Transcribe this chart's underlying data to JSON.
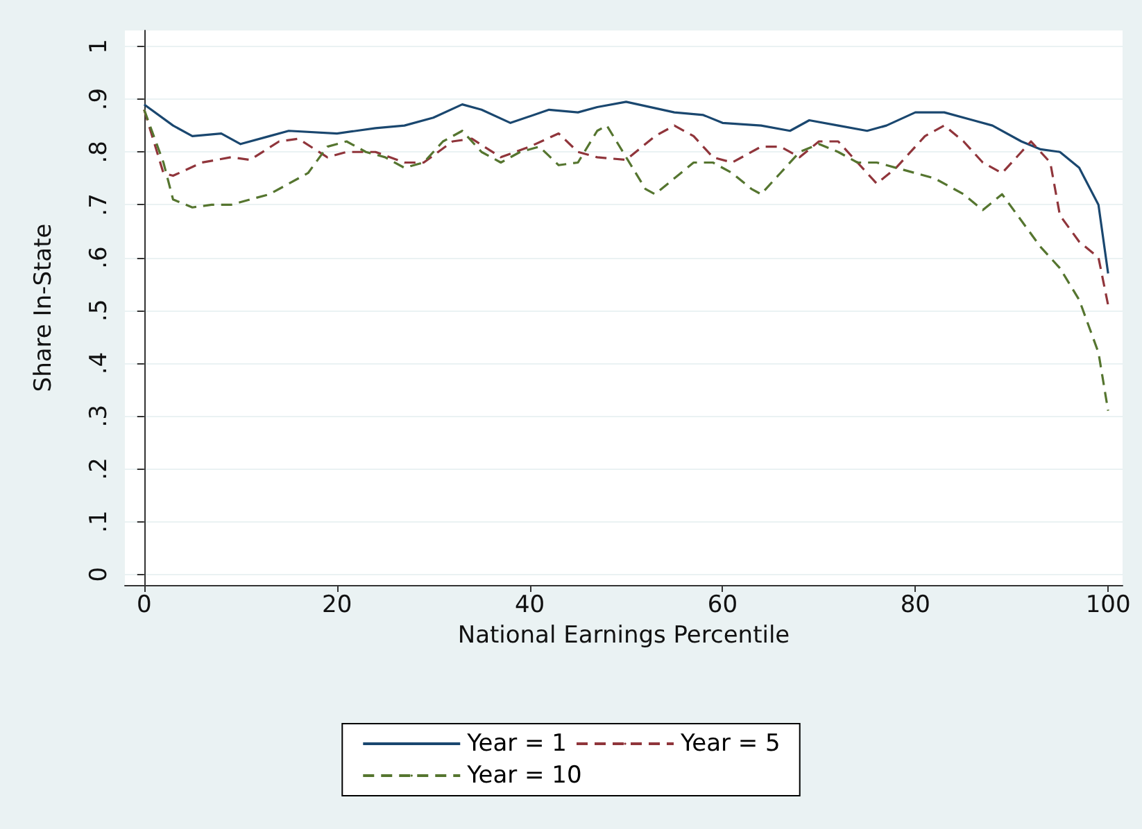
{
  "chart_data": {
    "type": "line",
    "xlabel": "National Earnings Percentile",
    "ylabel": "Share In-State",
    "xlim": [
      -2,
      101.5
    ],
    "xticks": [
      0,
      20,
      40,
      60,
      80,
      100
    ],
    "ylim": [
      -0.02,
      1.03
    ],
    "yticks": [
      {
        "value": 0,
        "label": "0"
      },
      {
        "value": 0.1,
        "label": ".1"
      },
      {
        "value": 0.2,
        "label": ".2"
      },
      {
        "value": 0.3,
        "label": ".3"
      },
      {
        "value": 0.4,
        "label": ".4"
      },
      {
        "value": 0.5,
        "label": ".5"
      },
      {
        "value": 0.6,
        "label": ".6"
      },
      {
        "value": 0.7,
        "label": ".7"
      },
      {
        "value": 0.8,
        "label": ".8"
      },
      {
        "value": 0.9,
        "label": ".9"
      },
      {
        "value": 1,
        "label": "1"
      }
    ],
    "grid": "y",
    "legend": "bottom",
    "marker": "none",
    "series": [
      {
        "name": "Year = 1",
        "color": "#1a476f",
        "line_style": "solid",
        "x": [
          0,
          3,
          5,
          8,
          10,
          13,
          15,
          20,
          24,
          27,
          30,
          33,
          35,
          38,
          42,
          45,
          47,
          50,
          55,
          58,
          60,
          64,
          67,
          69,
          72,
          75,
          77,
          80,
          83,
          86,
          88,
          91,
          93,
          95,
          97,
          99,
          100
        ],
        "values": [
          0.89,
          0.85,
          0.83,
          0.835,
          0.815,
          0.83,
          0.84,
          0.835,
          0.845,
          0.85,
          0.865,
          0.89,
          0.88,
          0.855,
          0.88,
          0.875,
          0.885,
          0.895,
          0.875,
          0.87,
          0.855,
          0.85,
          0.84,
          0.86,
          0.85,
          0.84,
          0.85,
          0.875,
          0.875,
          0.86,
          0.85,
          0.82,
          0.805,
          0.8,
          0.77,
          0.7,
          0.57
        ]
      },
      {
        "name": "Year = 5",
        "color": "#90353b",
        "line_style": "dashed",
        "x": [
          0,
          2,
          3,
          6,
          9,
          11,
          14,
          16,
          19,
          21,
          24,
          27,
          29,
          32,
          34,
          37,
          40,
          43,
          45,
          47,
          50,
          53,
          55,
          57,
          59,
          61,
          64,
          66,
          68,
          70,
          72,
          74,
          76,
          78,
          81,
          83,
          85,
          87,
          89,
          91,
          92,
          94,
          95,
          97,
          99,
          100
        ],
        "values": [
          0.88,
          0.76,
          0.755,
          0.78,
          0.79,
          0.785,
          0.82,
          0.825,
          0.79,
          0.8,
          0.8,
          0.78,
          0.78,
          0.82,
          0.825,
          0.79,
          0.81,
          0.835,
          0.8,
          0.79,
          0.785,
          0.83,
          0.85,
          0.83,
          0.79,
          0.78,
          0.81,
          0.81,
          0.79,
          0.82,
          0.82,
          0.78,
          0.74,
          0.77,
          0.83,
          0.85,
          0.82,
          0.78,
          0.76,
          0.8,
          0.82,
          0.78,
          0.68,
          0.63,
          0.6,
          0.51
        ]
      },
      {
        "name": "Year = 10",
        "color": "#55752f",
        "line_style": "dashed",
        "x": [
          0,
          2,
          3,
          5,
          7,
          9,
          11,
          13,
          15,
          17,
          19,
          21,
          23,
          25,
          27,
          29,
          31,
          33,
          35,
          37,
          39,
          41,
          43,
          45,
          47,
          48,
          50,
          52,
          53,
          55,
          57,
          59,
          61,
          63,
          64,
          66,
          68,
          70,
          72,
          74,
          76,
          78,
          80,
          82,
          85,
          87,
          89,
          91,
          93,
          95,
          97,
          99,
          100
        ],
        "values": [
          0.88,
          0.78,
          0.71,
          0.695,
          0.7,
          0.7,
          0.71,
          0.72,
          0.74,
          0.76,
          0.81,
          0.82,
          0.8,
          0.79,
          0.77,
          0.78,
          0.82,
          0.84,
          0.8,
          0.78,
          0.8,
          0.81,
          0.775,
          0.78,
          0.84,
          0.85,
          0.79,
          0.73,
          0.72,
          0.75,
          0.78,
          0.78,
          0.76,
          0.73,
          0.72,
          0.76,
          0.8,
          0.815,
          0.8,
          0.78,
          0.78,
          0.77,
          0.76,
          0.75,
          0.72,
          0.69,
          0.72,
          0.67,
          0.62,
          0.58,
          0.52,
          0.42,
          0.31
        ]
      }
    ]
  }
}
